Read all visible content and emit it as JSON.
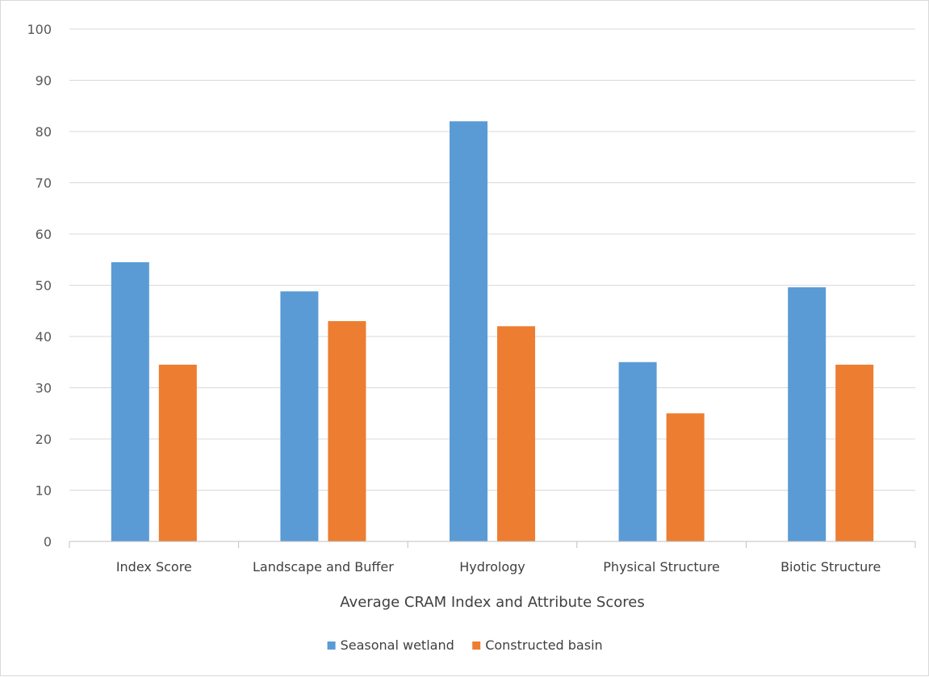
{
  "chart_data": {
    "type": "bar",
    "title": "",
    "xlabel": "Average CRAM Index and Attribute Scores",
    "ylabel": "",
    "categories": [
      "Index Score",
      "Landscape and Buffer",
      "Hydrology",
      "Physical Structure",
      "Biotic Structure"
    ],
    "series": [
      {
        "name": "Seasonal wetland",
        "color": "#5b9bd5",
        "values": [
          54.5,
          48.8,
          82,
          35,
          49.6
        ]
      },
      {
        "name": "Constructed basin",
        "color": "#ed7d31",
        "values": [
          34.5,
          43,
          42,
          25,
          34.5
        ]
      }
    ],
    "ylim": [
      0,
      100
    ],
    "yticks": [
      0,
      10,
      20,
      30,
      40,
      50,
      60,
      70,
      80,
      90,
      100
    ],
    "grid": true,
    "legend_position": "bottom"
  }
}
